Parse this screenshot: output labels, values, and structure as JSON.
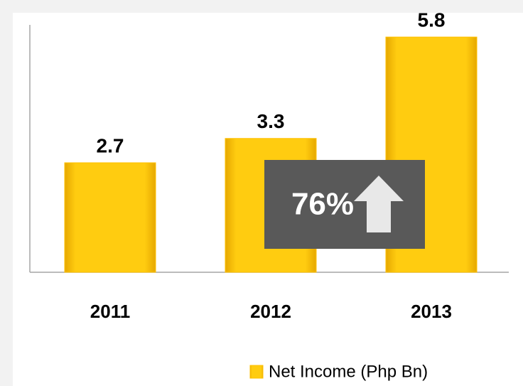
{
  "chart_data": {
    "type": "bar",
    "categories": [
      "2011",
      "2012",
      "2013"
    ],
    "values": [
      2.7,
      3.3,
      5.8
    ],
    "series_name": "Net Income (Php Bn)",
    "color": "#ffc000",
    "ylim": [
      0,
      6.1
    ],
    "annotation": "76%"
  }
}
